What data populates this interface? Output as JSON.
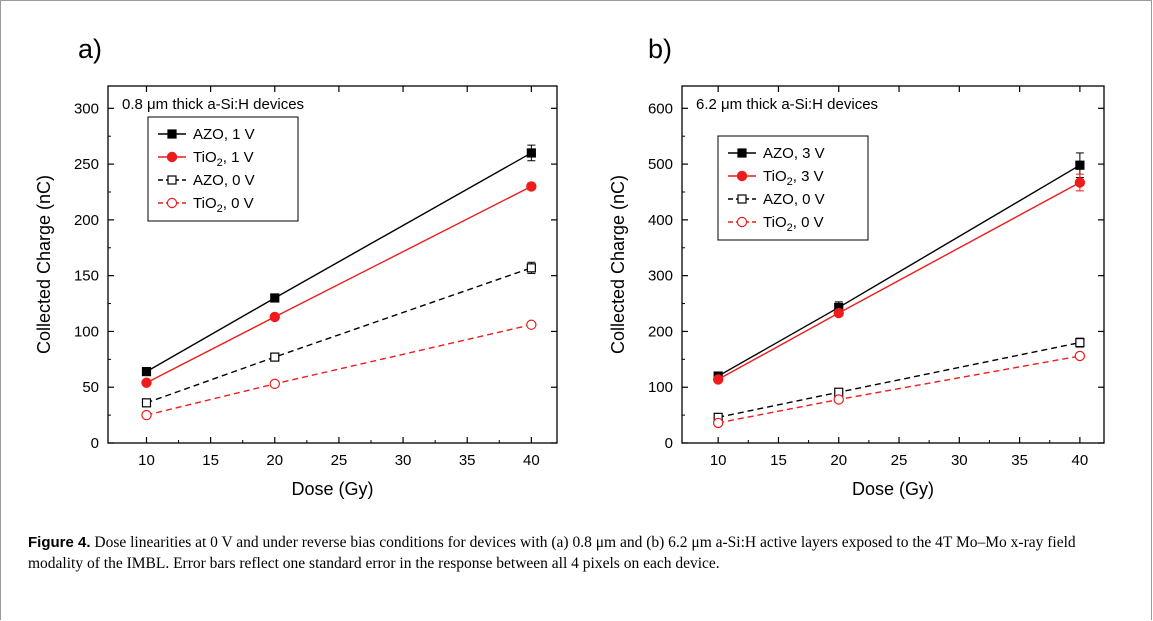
{
  "chart_data": [
    {
      "type": "line",
      "panel_label": "a)",
      "note": "0.8 μm thick a-Si:H devices",
      "xlabel": "Dose (Gy)",
      "ylabel": "Collected Charge (nC)",
      "xlim": [
        7,
        42
      ],
      "ylim": [
        0,
        320
      ],
      "xticks": [
        10,
        15,
        20,
        25,
        30,
        35,
        40
      ],
      "yticks": [
        0,
        50,
        100,
        150,
        200,
        250,
        300
      ],
      "legend_position": "top-left",
      "x": [
        10,
        20,
        40
      ],
      "series": [
        {
          "name": "AZO, 1 V",
          "sub": "",
          "name_tail": "",
          "values": [
            64,
            130,
            260
          ],
          "errors": [
            2,
            3,
            7
          ],
          "color": "#000000",
          "dashed": false,
          "filled": true,
          "marker": "square"
        },
        {
          "name": "TiO",
          "sub": "2",
          "name_tail": ", 1 V",
          "values": [
            54,
            113,
            230
          ],
          "errors": [
            2,
            2,
            3
          ],
          "color": "#ee1c1c",
          "dashed": false,
          "filled": true,
          "marker": "circle"
        },
        {
          "name": "AZO, 0 V",
          "sub": "",
          "name_tail": "",
          "values": [
            36,
            77,
            157
          ],
          "errors": [
            3,
            3,
            5
          ],
          "color": "#000000",
          "dashed": true,
          "filled": false,
          "marker": "square"
        },
        {
          "name": "TiO",
          "sub": "2",
          "name_tail": ", 0 V",
          "values": [
            25,
            53,
            106
          ],
          "errors": [
            2,
            2,
            2
          ],
          "color": "#ee1c1c",
          "dashed": true,
          "filled": false,
          "marker": "circle"
        }
      ]
    },
    {
      "type": "line",
      "panel_label": "b)",
      "note": "6.2 μm thick a-Si:H devices",
      "xlabel": "Dose (Gy)",
      "ylabel": "Collected Charge (nC)",
      "xlim": [
        7,
        42
      ],
      "ylim": [
        0,
        640
      ],
      "xticks": [
        10,
        15,
        20,
        25,
        30,
        35,
        40
      ],
      "yticks": [
        0,
        100,
        200,
        300,
        400,
        500,
        600
      ],
      "legend_position": "top-left",
      "x": [
        10,
        20,
        40
      ],
      "series": [
        {
          "name": "AZO, 3 V",
          "sub": "",
          "name_tail": "",
          "values": [
            120,
            243,
            498
          ],
          "errors": [
            4,
            10,
            22
          ],
          "color": "#000000",
          "dashed": false,
          "filled": true,
          "marker": "square"
        },
        {
          "name": "TiO",
          "sub": "2",
          "name_tail": ", 3 V",
          "values": [
            114,
            233,
            467
          ],
          "errors": [
            4,
            5,
            15
          ],
          "color": "#ee1c1c",
          "dashed": false,
          "filled": true,
          "marker": "circle"
        },
        {
          "name": "AZO, 0 V",
          "sub": "",
          "name_tail": "",
          "values": [
            46,
            91,
            180
          ],
          "errors": [
            4,
            5,
            8
          ],
          "color": "#000000",
          "dashed": true,
          "filled": false,
          "marker": "square"
        },
        {
          "name": "TiO",
          "sub": "2",
          "name_tail": ", 0 V",
          "values": [
            36,
            78,
            156
          ],
          "errors": [
            3,
            5,
            4
          ],
          "color": "#ee1c1c",
          "dashed": true,
          "filled": false,
          "marker": "circle"
        }
      ]
    }
  ],
  "caption": {
    "label": "Figure 4.",
    "text": " Dose linearities at 0 V and under reverse bias conditions for devices with (a) 0.8 μm and (b) 6.2 μm a-Si:H active layers exposed to the 4T Mo–Mo x-ray field modality of the IMBL. Error bars reflect one standard error in the response between all 4 pixels on each device."
  }
}
